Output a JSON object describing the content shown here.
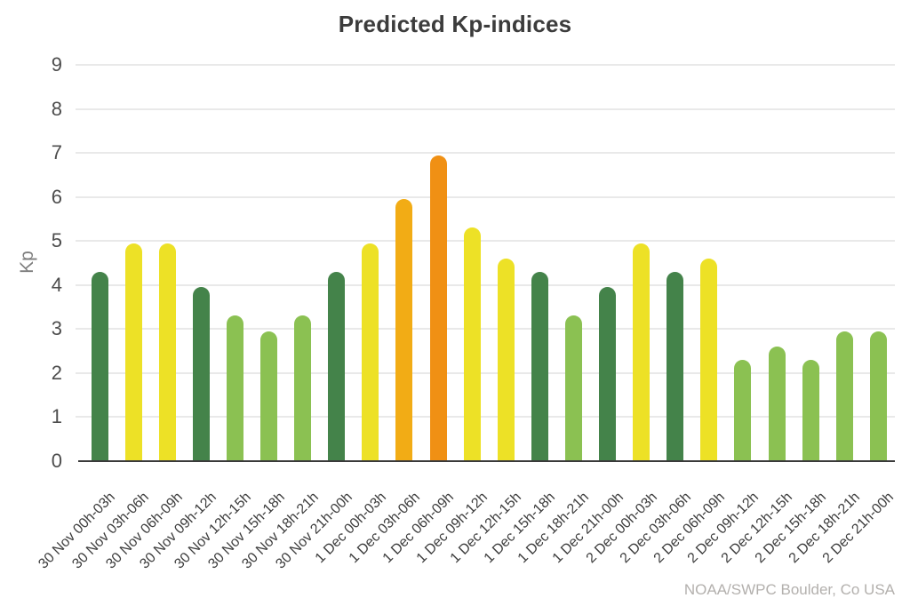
{
  "chart_data": {
    "type": "bar",
    "title": "Predicted Kp-indices",
    "ylabel": "Kp",
    "xlabel": "",
    "ylim": [
      0,
      9
    ],
    "ytick_step": 1,
    "grid": true,
    "legend_position": "none",
    "source_credit": "NOAA/SWPC Boulder, Co USA",
    "categories": [
      "30 Nov 00h-03h",
      "30 Nov 03h-06h",
      "30 Nov 06h-09h",
      "30 Nov 09h-12h",
      "30 Nov 12h-15h",
      "30 Nov 15h-18h",
      "30 Nov 18h-21h",
      "30 Nov 21h-00h",
      "1 Dec 00h-03h",
      "1 Dec 03h-06h",
      "1 Dec 06h-09h",
      "1 Dec 09h-12h",
      "1 Dec 12h-15h",
      "1 Dec 15h-18h",
      "1 Dec 18h-21h",
      "1 Dec 21h-00h",
      "2 Dec 00h-03h",
      "2 Dec 03h-06h",
      "2 Dec 06h-09h",
      "2 Dec 09h-12h",
      "2 Dec 12h-15h",
      "2 Dec 15h-18h",
      "2 Dec 18h-21h",
      "2 Dec 21h-00h"
    ],
    "values": [
      4.3,
      4.95,
      4.95,
      3.95,
      3.3,
      2.95,
      3.3,
      4.3,
      4.95,
      5.95,
      6.95,
      5.3,
      4.6,
      4.3,
      3.3,
      3.95,
      4.95,
      4.3,
      4.6,
      2.3,
      2.6,
      2.3,
      2.95,
      2.95
    ],
    "bar_color_names": [
      "darkgreen",
      "yellow",
      "yellow",
      "darkgreen",
      "lightgreen",
      "lightgreen",
      "lightgreen",
      "darkgreen",
      "yellow",
      "amber",
      "orange",
      "yellow",
      "yellow",
      "darkgreen",
      "lightgreen",
      "darkgreen",
      "yellow",
      "darkgreen",
      "yellow",
      "lightgreen",
      "lightgreen",
      "lightgreen",
      "lightgreen",
      "lightgreen"
    ],
    "palette": {
      "darkgreen": "#44834A",
      "lightgreen": "#8BC152",
      "yellow": "#EDE126",
      "amber": "#F2AC15",
      "orange": "#F09014"
    },
    "colors": {
      "background": "#FFFFFF",
      "title": "#3C3C3C",
      "y_tick": "#4D4D4D",
      "x_tick": "#3D3D3D",
      "y_axis_title": "#7D7D7D",
      "gridline": "#E9E9E9",
      "axis_line": "#3A3A3A",
      "watermark": "#B3B0AD"
    }
  }
}
